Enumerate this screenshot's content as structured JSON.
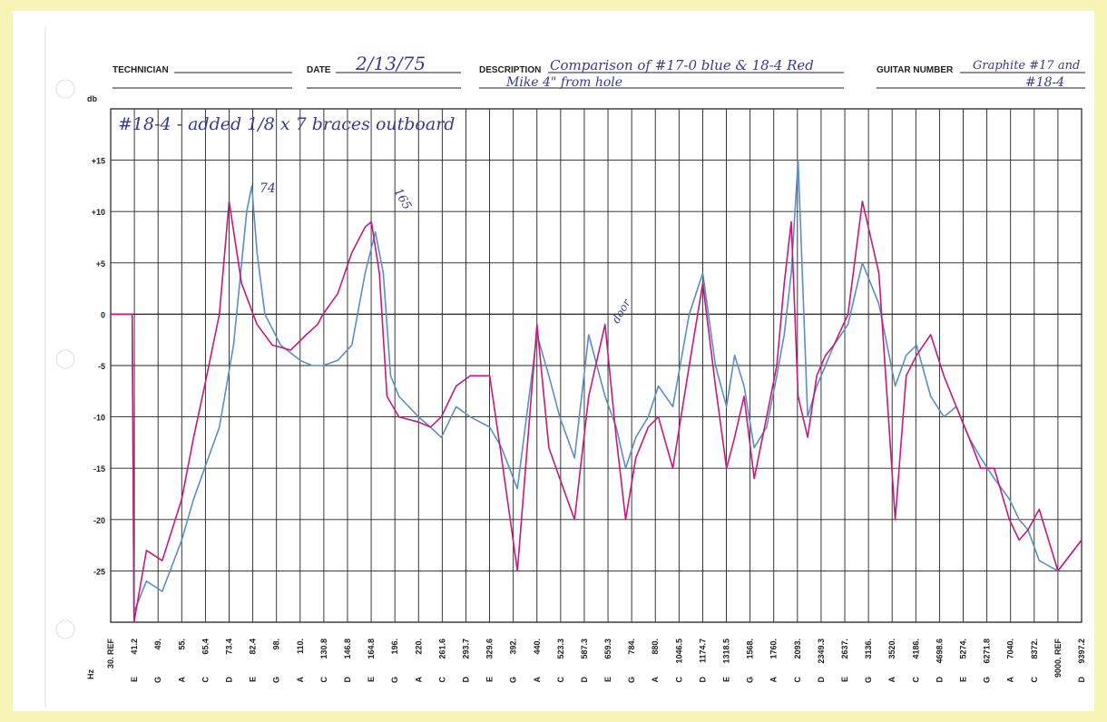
{
  "header": {
    "technician_label": "TECHNICIAN",
    "technician_value": "",
    "date_label": "DATE",
    "date_value": "2/13/75",
    "description_label": "DESCRIPTION",
    "description_line1": "Comparison of #17-0 blue & 18-4 Red",
    "description_line2": "Mike 4\" from hole",
    "guitar_label": "GUITAR NUMBER",
    "guitar_line1": "Graphite #17 and",
    "guitar_line2": "#18-4"
  },
  "chart_data": {
    "type": "line",
    "title": "",
    "ylabel": "db",
    "xlabel": "Hz",
    "ylim": [
      -30,
      20
    ],
    "yticks": [
      15,
      10,
      5,
      0,
      -5,
      -10,
      -15,
      -20,
      -25
    ],
    "ytick_labels": [
      "+15",
      "+10",
      "+5",
      "0",
      "-5",
      "-10",
      "-15",
      "-20",
      "-25"
    ],
    "grid": true,
    "x_ticks": [
      {
        "freq": "30. REF",
        "note": ""
      },
      {
        "freq": "41.2",
        "note": "E"
      },
      {
        "freq": "49.",
        "note": "G"
      },
      {
        "freq": "55.",
        "note": "A"
      },
      {
        "freq": "65.4",
        "note": "C"
      },
      {
        "freq": "73.4",
        "note": "D"
      },
      {
        "freq": "82.4",
        "note": "E"
      },
      {
        "freq": "98.",
        "note": "G"
      },
      {
        "freq": "110.",
        "note": "A"
      },
      {
        "freq": "130.8",
        "note": "C"
      },
      {
        "freq": "146.8",
        "note": "D"
      },
      {
        "freq": "164.8",
        "note": "E"
      },
      {
        "freq": "196.",
        "note": "G"
      },
      {
        "freq": "220.",
        "note": "A"
      },
      {
        "freq": "261.6",
        "note": "C"
      },
      {
        "freq": "293.7",
        "note": "D"
      },
      {
        "freq": "329.6",
        "note": "E"
      },
      {
        "freq": "392.",
        "note": "G"
      },
      {
        "freq": "440.",
        "note": "A"
      },
      {
        "freq": "523.3",
        "note": "C"
      },
      {
        "freq": "587.3",
        "note": "D"
      },
      {
        "freq": "659.3",
        "note": "E"
      },
      {
        "freq": "784.",
        "note": "G"
      },
      {
        "freq": "880.",
        "note": "A"
      },
      {
        "freq": "1046.5",
        "note": "C"
      },
      {
        "freq": "1174.7",
        "note": "D"
      },
      {
        "freq": "1318.5",
        "note": "E"
      },
      {
        "freq": "1568.",
        "note": "G"
      },
      {
        "freq": "1760.",
        "note": "A"
      },
      {
        "freq": "2093.",
        "note": "C"
      },
      {
        "freq": "2349.3",
        "note": "D"
      },
      {
        "freq": "2637.",
        "note": "E"
      },
      {
        "freq": "3136.",
        "note": "G"
      },
      {
        "freq": "3520.",
        "note": "A"
      },
      {
        "freq": "4186.",
        "note": "C"
      },
      {
        "freq": "4698.6",
        "note": "D"
      },
      {
        "freq": "5274.",
        "note": "E"
      },
      {
        "freq": "6271.8",
        "note": "G"
      },
      {
        "freq": "7040.",
        "note": "A"
      },
      {
        "freq": "8372.",
        "note": "C"
      },
      {
        "freq": "9000. REF",
        "note": ""
      },
      {
        "freq": "9397.2",
        "note": "D"
      }
    ],
    "series": [
      {
        "color": "#5b8ec4",
        "x": [
          30,
          40,
          41,
          45,
          50,
          55,
          60,
          65,
          70,
          75,
          80,
          82,
          85,
          90,
          100,
          110,
          120,
          130,
          140,
          150,
          160,
          170,
          180,
          190,
          200,
          220,
          240,
          260,
          280,
          300,
          330,
          360,
          400,
          440,
          480,
          520,
          560,
          600,
          650,
          700,
          750,
          800,
          850,
          900,
          1000,
          1100,
          1175,
          1250,
          1320,
          1400,
          1500,
          1600,
          1700,
          1800,
          1900,
          2000,
          2100,
          2200,
          2300,
          2400,
          2500,
          2700,
          3000,
          3300,
          3600,
          3900,
          4200,
          4500,
          4800,
          5100,
          5500,
          6000,
          6500,
          7000,
          7500,
          8000,
          8500,
          9000,
          9400
        ],
        "y": [
          0,
          0,
          -29,
          -26,
          -27,
          -22,
          -18,
          -15,
          -11,
          -3,
          10,
          12.5,
          6,
          0,
          -3,
          -4.5,
          -5,
          -5,
          -4.5,
          -3,
          4,
          8,
          4,
          -6,
          -8,
          -10,
          -11,
          -12,
          -9,
          -10,
          -11,
          -13,
          -17,
          -2,
          -6,
          -10,
          -14,
          -2,
          -8,
          -11,
          -15,
          -12,
          -10,
          -7,
          -9,
          0,
          4,
          -5,
          -9,
          -4,
          -7,
          -13,
          -11,
          -6,
          -2,
          4,
          15,
          -10,
          -7,
          -5,
          -3,
          -1,
          5,
          1,
          -7,
          -4,
          -3,
          -8,
          -10,
          -9,
          -12,
          -14,
          -16,
          -18,
          -20,
          -21,
          -24,
          -25,
          -22
        ]
      },
      {
        "color": "#c21a7e",
        "x": [
          30,
          40,
          41,
          45,
          50,
          55,
          60,
          65,
          70,
          73.4,
          78,
          85,
          95,
          105,
          115,
          125,
          130,
          140,
          150,
          160,
          165,
          175,
          185,
          200,
          220,
          240,
          260,
          280,
          300,
          330,
          360,
          400,
          440,
          480,
          520,
          560,
          600,
          650,
          700,
          750,
          800,
          850,
          900,
          1000,
          1100,
          1175,
          1250,
          1320,
          1400,
          1500,
          1600,
          1700,
          1800,
          1900,
          2000,
          2100,
          2200,
          2300,
          2400,
          2500,
          2700,
          3000,
          3300,
          3600,
          3900,
          4200,
          4500,
          4800,
          5100,
          5500,
          6000,
          6500,
          7000,
          7500,
          8000,
          8500,
          9000,
          9400
        ],
        "y": [
          0,
          0,
          -30,
          -23,
          -24,
          -18,
          -12,
          -7,
          0,
          11,
          3,
          -1,
          -3,
          -3.5,
          -2,
          -1,
          0,
          2,
          6,
          8.5,
          9,
          4,
          -8,
          -10,
          -10.5,
          -11,
          -10,
          -7,
          -6,
          -6,
          -14,
          -25,
          -1,
          -13,
          -16,
          -20,
          -8,
          -1,
          -12,
          -20,
          -14,
          -11,
          -10,
          -15,
          -5,
          3,
          -7,
          -15,
          -12,
          -8,
          -16,
          -10,
          -5,
          3,
          9,
          -8,
          -12,
          -6,
          -4,
          -3,
          0,
          11,
          4,
          -20,
          -6,
          -4,
          -2,
          -6,
          -9,
          -12,
          -15,
          -15,
          -20,
          -22,
          -21,
          -19,
          -25,
          -22
        ]
      }
    ],
    "annotations": [
      "74",
      "165",
      "door"
    ],
    "handwritten_note": "#18-4 - added 1/8 x 7 braces outboard"
  }
}
